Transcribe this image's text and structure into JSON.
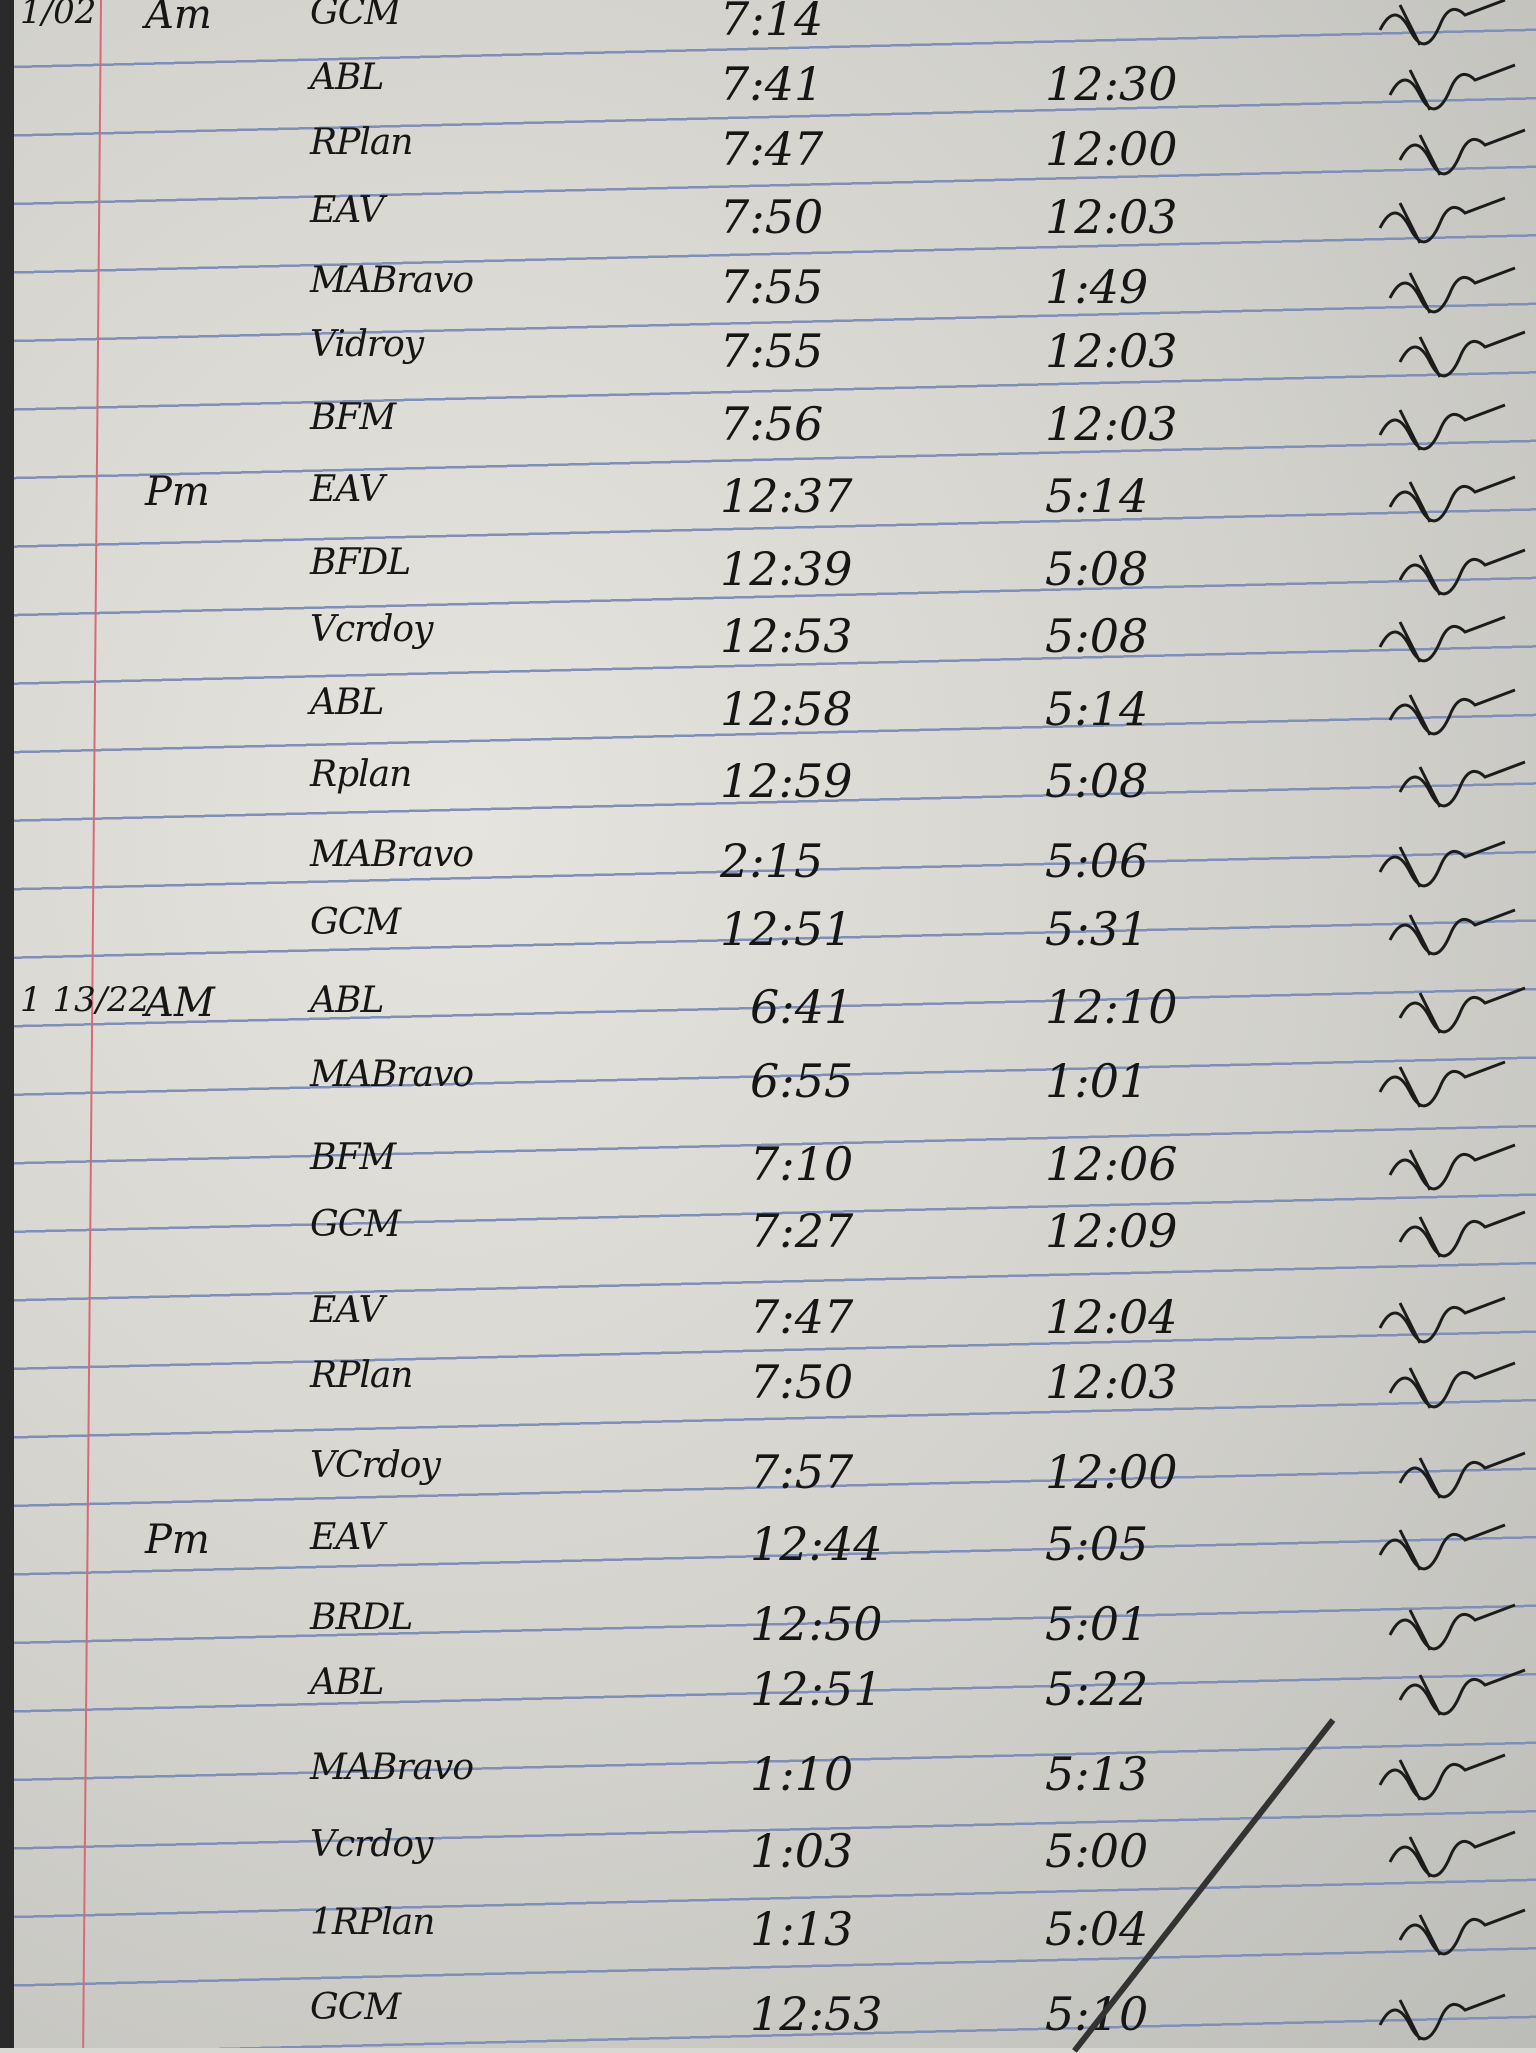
{
  "log": {
    "rows": [
      {
        "date": "1/02",
        "period": "Am",
        "name": "GCM",
        "time_in": "7:14",
        "time_out": ""
      },
      {
        "date": "",
        "period": "",
        "name": "ABL",
        "time_in": "7:41",
        "time_out": "12:30"
      },
      {
        "date": "",
        "period": "",
        "name": "RPlan",
        "time_in": "7:47",
        "time_out": "12:00"
      },
      {
        "date": "",
        "period": "",
        "name": "EAV",
        "time_in": "7:50",
        "time_out": "12:03"
      },
      {
        "date": "",
        "period": "",
        "name": "MABravo",
        "time_in": "7:55",
        "time_out": "1:49"
      },
      {
        "date": "",
        "period": "",
        "name": "Vidroy",
        "time_in": "7:55",
        "time_out": "12:03"
      },
      {
        "date": "",
        "period": "",
        "name": "BFM",
        "time_in": "7:56",
        "time_out": "12:03"
      },
      {
        "date": "",
        "period": "Pm",
        "name": "EAV",
        "time_in": "12:37",
        "time_out": "5:14"
      },
      {
        "date": "",
        "period": "",
        "name": "BFDL",
        "time_in": "12:39",
        "time_out": "5:08"
      },
      {
        "date": "",
        "period": "",
        "name": "Vcrdoy",
        "time_in": "12:53",
        "time_out": "5:08"
      },
      {
        "date": "",
        "period": "",
        "name": "ABL",
        "time_in": "12:58",
        "time_out": "5:14"
      },
      {
        "date": "",
        "period": "",
        "name": "Rplan",
        "time_in": "12:59",
        "time_out": "5:08"
      },
      {
        "date": "",
        "period": "",
        "name": "MABravo",
        "time_in": "2:15",
        "time_out": "5:06"
      },
      {
        "date": "",
        "period": "",
        "name": "GCM",
        "time_in": "12:51",
        "time_out": "5:31"
      },
      {
        "date": "1 13/22",
        "period": "AM",
        "name": "ABL",
        "time_in": "6:41",
        "time_out": "12:10"
      },
      {
        "date": "",
        "period": "",
        "name": "MABravo",
        "time_in": "6:55",
        "time_out": "1:01"
      },
      {
        "date": "",
        "period": "",
        "name": "BFM",
        "time_in": "7:10",
        "time_out": "12:06"
      },
      {
        "date": "",
        "period": "",
        "name": "GCM",
        "time_in": "7:27",
        "time_out": "12:09"
      },
      {
        "date": "",
        "period": "",
        "name": "EAV",
        "time_in": "7:47",
        "time_out": "12:04"
      },
      {
        "date": "",
        "period": "",
        "name": "RPlan",
        "time_in": "7:50",
        "time_out": "12:03"
      },
      {
        "date": "",
        "period": "",
        "name": "VCrdoy",
        "time_in": "7:57",
        "time_out": "12:00"
      },
      {
        "date": "",
        "period": "Pm",
        "name": "EAV",
        "time_in": "12:44",
        "time_out": "5:05"
      },
      {
        "date": "",
        "period": "",
        "name": "BRDL",
        "time_in": "12:50",
        "time_out": "5:01"
      },
      {
        "date": "",
        "period": "",
        "name": "ABL",
        "time_in": "12:51",
        "time_out": "5:22"
      },
      {
        "date": "",
        "period": "",
        "name": "MABravo",
        "time_in": "1:10",
        "time_out": "5:13"
      },
      {
        "date": "",
        "period": "",
        "name": "Vcrdoy",
        "time_in": "1:03",
        "time_out": "5:00"
      },
      {
        "date": "",
        "period": "",
        "name": "1RPlan",
        "time_in": "1:13",
        "time_out": "5:04"
      },
      {
        "date": "",
        "period": "",
        "name": "GCM",
        "time_in": "12:53",
        "time_out": "5:10"
      }
    ]
  },
  "colors": {
    "ink": "#161616",
    "rule_line": "#7f8fb8",
    "margin_line": "#d86a78",
    "paper": "#dedcd6"
  }
}
